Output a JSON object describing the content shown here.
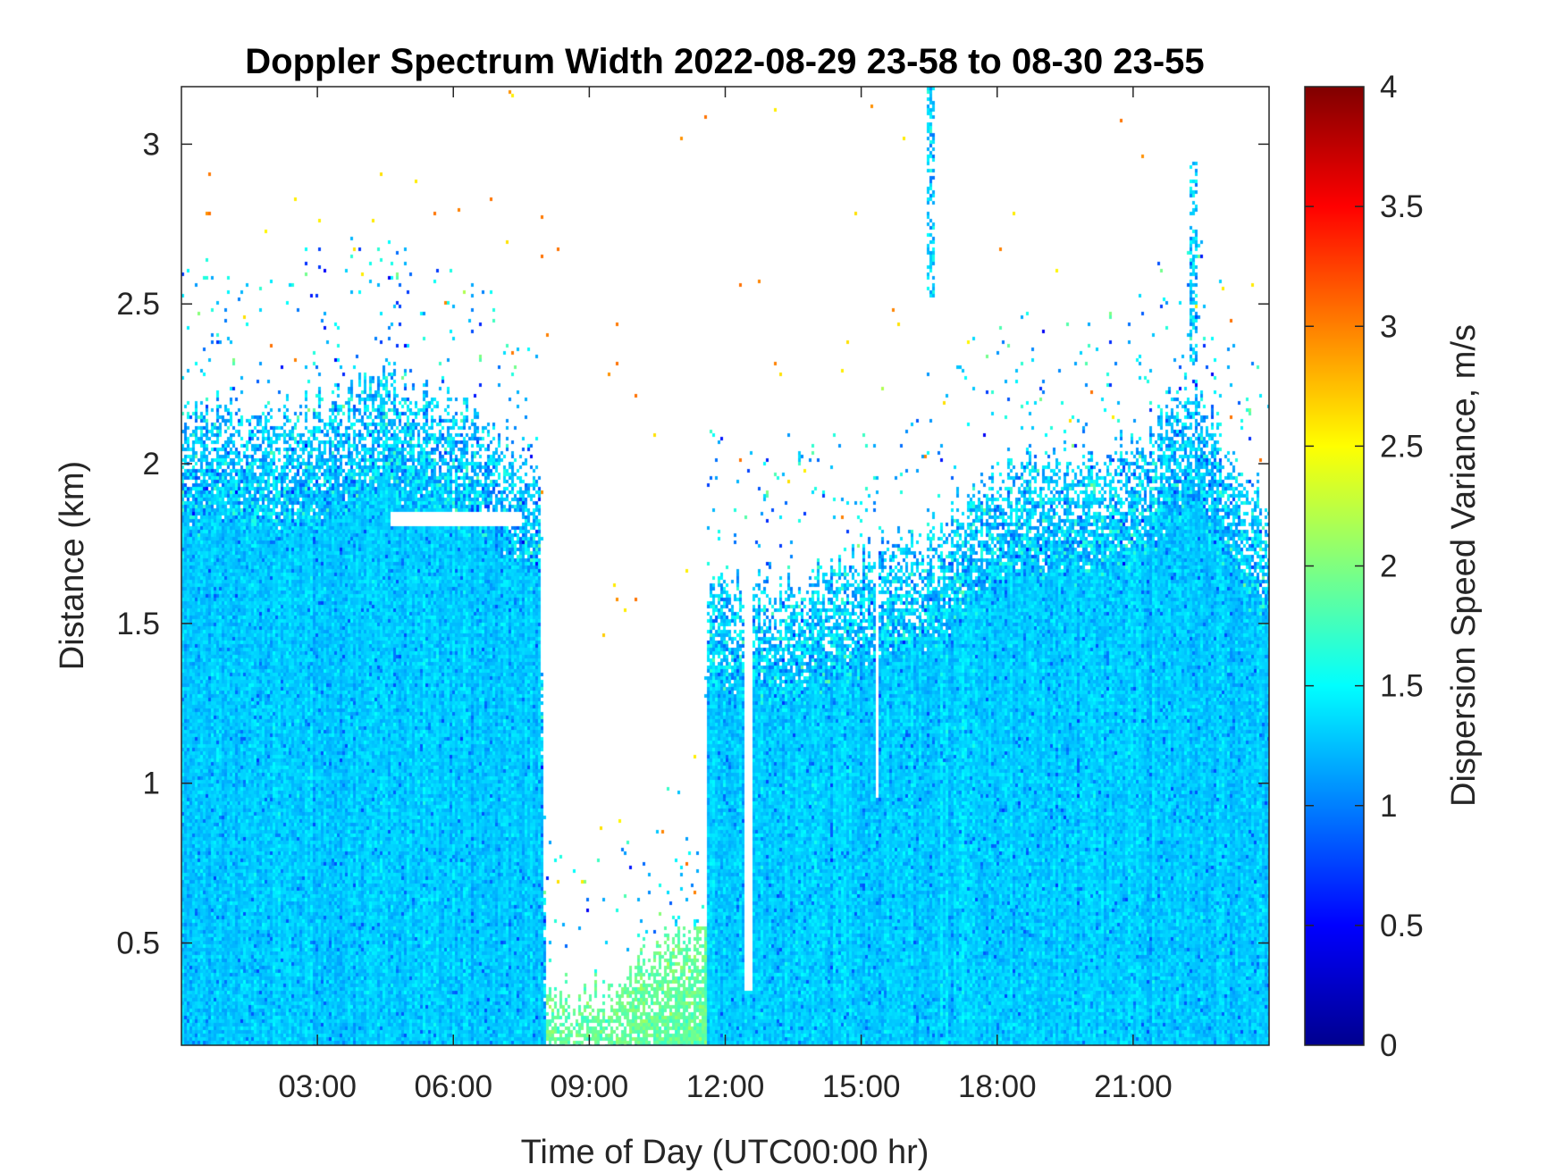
{
  "chart_data": {
    "type": "heatmap",
    "title": "Doppler Spectrum Width 2022-08-29 23-58 to 08-30 23-55",
    "xlabel": "Time of Day (UTC00:00 hr)",
    "ylabel": "Distance (km)",
    "colorbar_label": "Dispersion Speed Variance, m/s",
    "colormap": "jet",
    "xlim": [
      0,
      24
    ],
    "ylim": [
      0.18,
      3.18
    ],
    "clim": [
      0,
      4
    ],
    "x_ticks": [
      {
        "value": 3,
        "label": "03:00"
      },
      {
        "value": 6,
        "label": "06:00"
      },
      {
        "value": 9,
        "label": "09:00"
      },
      {
        "value": 12,
        "label": "12:00"
      },
      {
        "value": 15,
        "label": "15:00"
      },
      {
        "value": 18,
        "label": "18:00"
      },
      {
        "value": 21,
        "label": "21:00"
      }
    ],
    "y_ticks": [
      {
        "value": 0.5,
        "label": "0.5"
      },
      {
        "value": 1,
        "label": "1"
      },
      {
        "value": 1.5,
        "label": "1.5"
      },
      {
        "value": 2,
        "label": "2"
      },
      {
        "value": 2.5,
        "label": "2.5"
      },
      {
        "value": 3,
        "label": "3"
      }
    ],
    "colorbar_ticks": [
      {
        "value": 0,
        "label": "0"
      },
      {
        "value": 0.5,
        "label": "0.5"
      },
      {
        "value": 1,
        "label": "1"
      },
      {
        "value": 1.5,
        "label": "1.5"
      },
      {
        "value": 2,
        "label": "2"
      },
      {
        "value": 2.5,
        "label": "2.5"
      },
      {
        "value": 3,
        "label": "3"
      },
      {
        "value": 3.5,
        "label": "3.5"
      },
      {
        "value": 4,
        "label": "4"
      }
    ],
    "typical_value": 1.3,
    "signal_top_profile": [
      {
        "time": 0.0,
        "top_km": 2.15
      },
      {
        "time": 1.0,
        "top_km": 2.2
      },
      {
        "time": 2.5,
        "top_km": 2.15
      },
      {
        "time": 4.5,
        "top_km": 2.3
      },
      {
        "time": 7.5,
        "top_km": 2.05
      },
      {
        "time": 7.9,
        "top_km": 1.95
      },
      {
        "time": 8.05,
        "top_km": 0.35
      },
      {
        "time": 9.6,
        "top_km": 0.35
      },
      {
        "time": 10.3,
        "top_km": 0.5
      },
      {
        "time": 11.5,
        "top_km": 0.55
      },
      {
        "time": 11.6,
        "top_km": 1.65
      },
      {
        "time": 13.0,
        "top_km": 1.6
      },
      {
        "time": 14.5,
        "top_km": 1.7
      },
      {
        "time": 16.0,
        "top_km": 1.75
      },
      {
        "time": 17.0,
        "top_km": 1.85
      },
      {
        "time": 18.5,
        "top_km": 2.0
      },
      {
        "time": 21.0,
        "top_km": 2.05
      },
      {
        "time": 22.3,
        "top_km": 2.25
      },
      {
        "time": 23.3,
        "top_km": 2.0
      },
      {
        "time": 24.0,
        "top_km": 1.85
      }
    ],
    "plume_features": [
      {
        "time_start": 16.45,
        "time_end": 16.65,
        "bottom_km": 2.52,
        "top_km": 3.18
      },
      {
        "time_start": 22.25,
        "time_end": 22.45,
        "bottom_km": 2.3,
        "top_km": 2.95
      }
    ],
    "gap_features": [
      {
        "time_start": 11.5,
        "time_end": 11.6,
        "bottom_km": 0.55,
        "top_km": 1.7
      },
      {
        "time_start": 12.45,
        "time_end": 12.6,
        "bottom_km": 0.35,
        "top_km": 1.7
      },
      {
        "time_start": 15.3,
        "time_end": 15.4,
        "bottom_km": 0.95,
        "top_km": 1.7
      },
      {
        "time_start": 4.6,
        "time_end": 7.5,
        "bottom_km": 1.8,
        "top_km": 1.85
      }
    ],
    "enhanced_region": {
      "time_start": 8.05,
      "time_end": 11.6,
      "bottom_km": 0.18,
      "top_km": 0.55,
      "value": 1.9
    },
    "scattered_echo_levels": [
      2.6,
      3.0
    ]
  }
}
